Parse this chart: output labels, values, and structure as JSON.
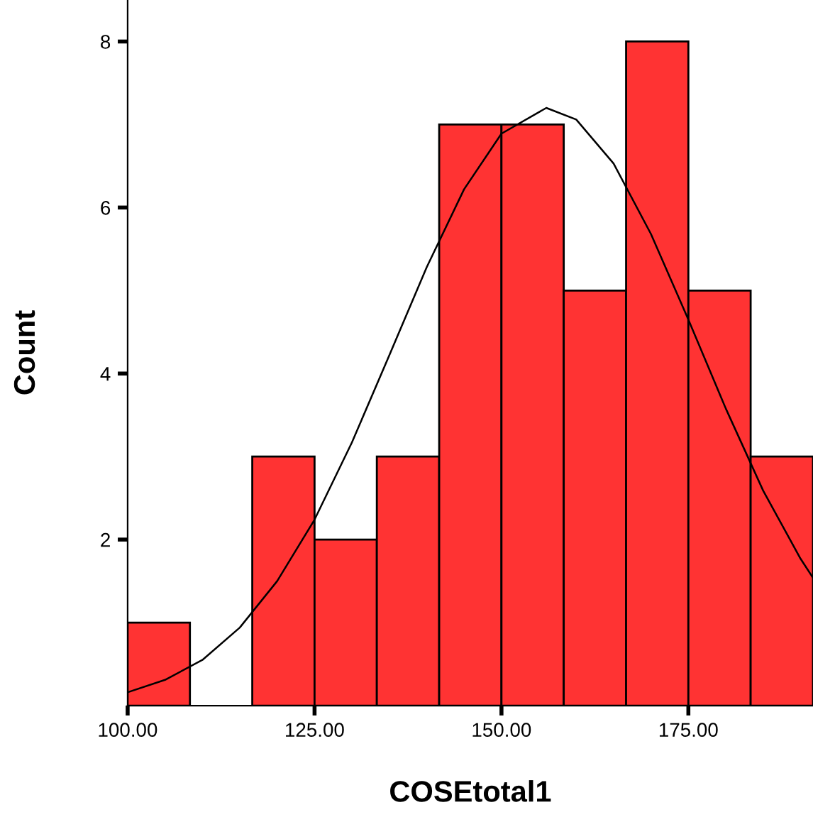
{
  "chart_data": {
    "type": "histogram",
    "xlabel": "COSEtotal1",
    "ylabel": "Count",
    "bins": [
      100,
      108.33,
      116.67,
      125,
      133.33,
      141.67,
      150,
      158.33,
      166.67,
      175,
      183.33,
      191.67
    ],
    "values": [
      1,
      0,
      3,
      2,
      3,
      7,
      7,
      5,
      8,
      5,
      3
    ],
    "color": "#ff3333",
    "series": [
      {
        "type": "line",
        "color": "#000000",
        "x": [
          100,
          105,
          110,
          115,
          120,
          125,
          130,
          135,
          140,
          145,
          150,
          156,
          160,
          165,
          170,
          175,
          180,
          185,
          190,
          191.67
        ],
        "values": [
          0.16,
          0.31,
          0.55,
          0.94,
          1.5,
          2.24,
          3.17,
          4.22,
          5.28,
          6.22,
          6.89,
          7.2,
          7.06,
          6.53,
          5.68,
          4.65,
          3.58,
          2.59,
          1.77,
          1.54
        ]
      }
    ],
    "xlim": [
      100,
      191.67
    ],
    "ylim": [
      0,
      8.5
    ],
    "xticks": [
      {
        "value": 100,
        "label": "100.00"
      },
      {
        "value": 125,
        "label": "125.00"
      },
      {
        "value": 150,
        "label": "150.00"
      },
      {
        "value": 175,
        "label": "175.00"
      }
    ],
    "yticks": [
      2,
      4,
      6,
      8
    ],
    "grid": false,
    "legend": false
  }
}
